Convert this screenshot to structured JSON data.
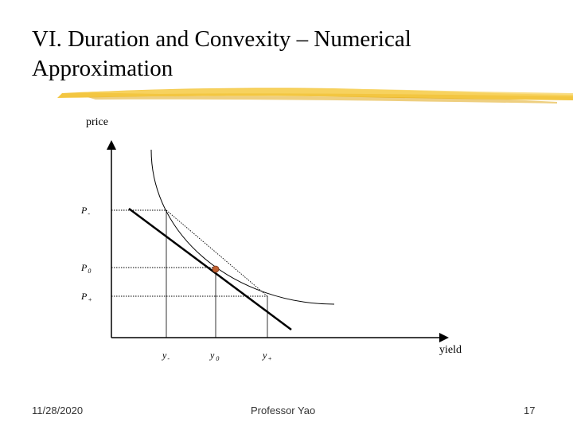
{
  "slide": {
    "title_line1": "VI. Duration and Convexity – Numerical",
    "title_line2": "Approximation",
    "accent_color": "#f2c02c"
  },
  "diagram": {
    "axis_labels": {
      "y": "price",
      "x": "yield"
    },
    "price_labels": {
      "p_minus": {
        "base": "P",
        "sub": "-"
      },
      "p_zero": {
        "base": "P",
        "sub": "0"
      },
      "p_plus": {
        "base": "P",
        "sub": "+"
      }
    },
    "yield_labels": {
      "y_minus": {
        "base": "y",
        "sub": "-"
      },
      "y_zero": {
        "base": "y",
        "sub": "0"
      },
      "y_plus": {
        "base": "y",
        "sub": "+"
      }
    },
    "point_color": "#c06030"
  },
  "footer": {
    "date": "11/28/2020",
    "center": "Professor Yao",
    "page_number": "17"
  }
}
